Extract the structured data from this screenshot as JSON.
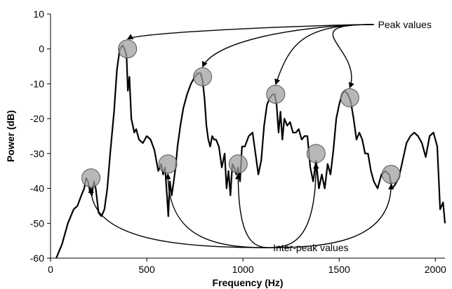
{
  "chart_data": {
    "type": "line",
    "title": "",
    "xlabel": "Frequency (Hz)",
    "ylabel": "Power (dB)",
    "xlim": [
      0,
      2050
    ],
    "ylim": [
      -60,
      10
    ],
    "x_ticks": [
      0,
      500,
      1000,
      1500,
      2000
    ],
    "y_ticks": [
      10,
      0,
      -10,
      -20,
      -30,
      -40,
      -50,
      -60
    ],
    "grid": false,
    "legend": "none",
    "series": [
      {
        "x": [
          30,
          60,
          90,
          120,
          140,
          160,
          175,
          185,
          195,
          205,
          215,
          225,
          235,
          250,
          265,
          280,
          295,
          310,
          330,
          345,
          360,
          375,
          385,
          395,
          402,
          410,
          420,
          428,
          435,
          445,
          460,
          480,
          500,
          520,
          540,
          560,
          575,
          585,
          595,
          605,
          612,
          620,
          630,
          640,
          650,
          660,
          675,
          690,
          710,
          730,
          750,
          765,
          780,
          790,
          800,
          810,
          820,
          830,
          840,
          850,
          860,
          875,
          890,
          905,
          915,
          925,
          935,
          945,
          955,
          965,
          975,
          985,
          995,
          1010,
          1030,
          1050,
          1065,
          1080,
          1095,
          1110,
          1125,
          1140,
          1155,
          1165,
          1175,
          1185,
          1195,
          1205,
          1215,
          1230,
          1245,
          1260,
          1275,
          1290,
          1305,
          1320,
          1335,
          1350,
          1365,
          1380,
          1395,
          1410,
          1425,
          1440,
          1455,
          1470,
          1485,
          1500,
          1515,
          1530,
          1545,
          1560,
          1575,
          1590,
          1605,
          1620,
          1635,
          1650,
          1665,
          1680,
          1700,
          1720,
          1740,
          1760,
          1775,
          1790,
          1810,
          1830,
          1850,
          1870,
          1890,
          1910,
          1930,
          1950,
          1970,
          1990,
          2010,
          2025,
          2040,
          2050
        ],
        "y": [
          -60,
          -56,
          -50,
          -46,
          -45,
          -42,
          -40,
          -37,
          -38,
          -41,
          -42,
          -38,
          -40,
          -47,
          -48,
          -46,
          -40,
          -30,
          -18,
          -6,
          0,
          1,
          0,
          -2,
          -12,
          -8,
          -20,
          -22,
          -24,
          -23,
          -26,
          -27,
          -25,
          -26,
          -29,
          -35,
          -33,
          -36,
          -34,
          -42,
          -48,
          -38,
          -42,
          -38,
          -34,
          -28,
          -22,
          -17,
          -13,
          -10,
          -8,
          -7,
          -7,
          -9,
          -14,
          -22,
          -26,
          -28,
          -25,
          -26,
          -26,
          -28,
          -34,
          -30,
          -40,
          -35,
          -42,
          -33,
          -34,
          -36,
          -34,
          -38,
          -28,
          -28,
          -25,
          -24,
          -30,
          -36,
          -32,
          -22,
          -16,
          -14,
          -13,
          -13,
          -16,
          -24,
          -18,
          -26,
          -20,
          -22,
          -21,
          -24,
          -24,
          -23,
          -26,
          -25,
          -25,
          -34,
          -38,
          -32,
          -40,
          -36,
          -40,
          -33,
          -36,
          -29,
          -20,
          -16,
          -13,
          -12,
          -13,
          -15,
          -20,
          -26,
          -24,
          -26,
          -30,
          -30,
          -35,
          -38,
          -40,
          -36,
          -35,
          -36,
          -40,
          -39,
          -37,
          -32,
          -27,
          -25,
          -24,
          -25,
          -27,
          -31,
          -25,
          -24,
          -28,
          -46,
          -44,
          -50
        ]
      }
    ],
    "markers": {
      "peak": [
        [
          400,
          0
        ],
        [
          790,
          -8
        ],
        [
          1170,
          -13
        ],
        [
          1555,
          -14
        ]
      ],
      "inter_peak": [
        [
          210,
          -37
        ],
        [
          610,
          -33
        ],
        [
          975,
          -33
        ],
        [
          1380,
          -30
        ],
        [
          1770,
          -36
        ]
      ]
    },
    "annotations": [
      {
        "text": "Peak values",
        "x": 1680,
        "y": 7,
        "points_to": [
          [
            400,
            0
          ],
          [
            790,
            -8
          ],
          [
            1170,
            -13
          ],
          [
            1555,
            -14
          ]
        ]
      },
      {
        "text": "Inter-peak values",
        "x": 1135,
        "y": -57,
        "points_to": [
          [
            210,
            -37
          ],
          [
            610,
            -33
          ],
          [
            975,
            -33
          ],
          [
            1380,
            -30
          ],
          [
            1770,
            -36
          ]
        ]
      }
    ]
  }
}
